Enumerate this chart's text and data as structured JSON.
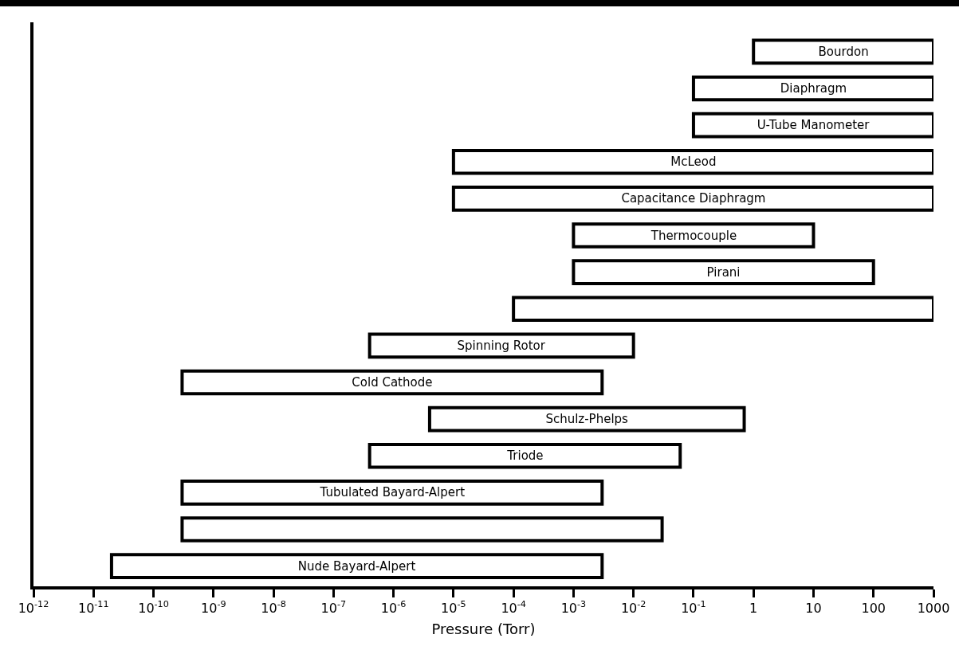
{
  "chart_data": {
    "type": "bar",
    "orientation": "horizontal",
    "xlabel": "Pressure (Torr)",
    "categories": [
      "Bourdon",
      "Diaphragm",
      "U-Tube Manometer",
      "McLeod",
      "Capacitance Diaphragm",
      "Thermocouple",
      "Pirani",
      null,
      "Spinning Rotor",
      "Cold Cathode",
      "Schulz-Phelps",
      "Triode",
      "Tubulated Bayard-Alpert",
      null,
      "Nude Bayard-Alpert"
    ],
    "base": [
      1,
      0.1,
      0.1,
      1e-05,
      1e-05,
      0.001,
      0.001,
      0.0001,
      4e-07,
      3e-10,
      4e-06,
      4e-07,
      3e-10,
      3e-10,
      2e-11
    ],
    "values": [
      999,
      999.9,
      999.9,
      999.99999,
      999.99999,
      9.999,
      99.999,
      999.9999,
      0.0099996,
      0.0029999997,
      0.699996,
      0.0599996,
      0.0029999997,
      0.0299999997,
      0.00299999998
    ],
    "color": "#ffffff",
    "log": "x",
    "xlim": [
      1e-12,
      1000
    ],
    "xticks": [
      {
        "value": 1e-12,
        "label": "10$^{-12}$"
      },
      {
        "value": 1e-11,
        "label": "10$^{-11}$"
      },
      {
        "value": 1e-10,
        "label": "10$^{-10}$"
      },
      {
        "value": 1e-09,
        "label": "10$^{-9}$"
      },
      {
        "value": 1e-08,
        "label": "10$^{-8}$"
      },
      {
        "value": 1e-07,
        "label": "10$^{-7}$"
      },
      {
        "value": 1e-06,
        "label": "10$^{-6}$"
      },
      {
        "value": 1e-05,
        "label": "10$^{-5}$"
      },
      {
        "value": 0.0001,
        "label": "10$^{-4}$"
      },
      {
        "value": 0.001,
        "label": "10$^{-3}$"
      },
      {
        "value": 0.01,
        "label": "10$^{-2}$"
      },
      {
        "value": 0.1,
        "label": "10$^{-1}$"
      },
      1,
      10,
      100,
      1000
    ],
    "tick_labels": "x",
    "grid": false,
    "legend": false
  }
}
